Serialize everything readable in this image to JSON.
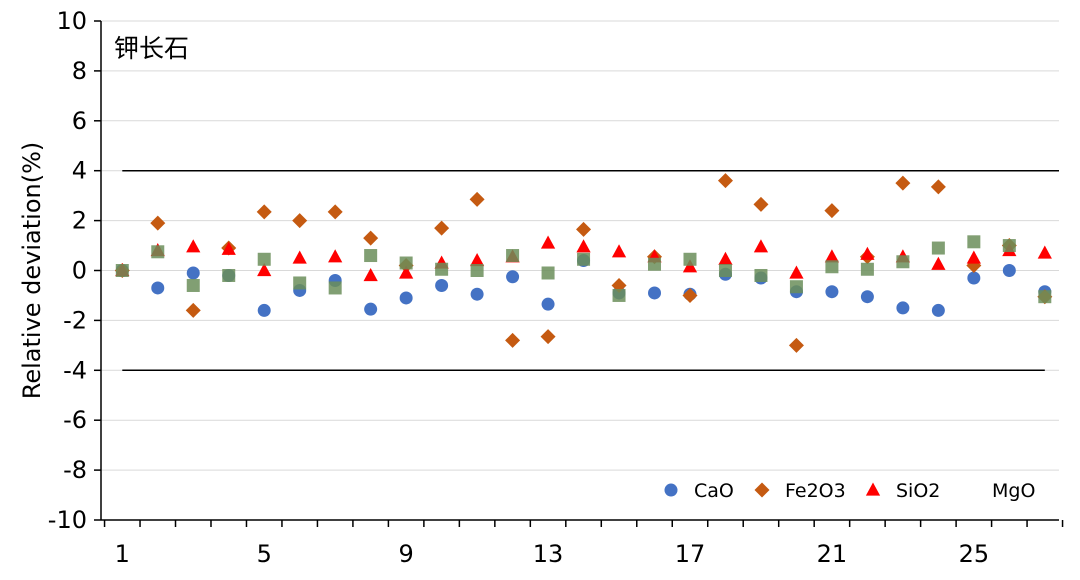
{
  "chart_data": {
    "type": "scatter",
    "title": "钾长石",
    "ylabel": "Relative deviation(%)",
    "xlabel": "",
    "xlim": [
      0.4,
      27.4
    ],
    "ylim": [
      -10,
      10
    ],
    "x_ticks": [
      1,
      5,
      9,
      13,
      17,
      21,
      25
    ],
    "y_ticks": [
      10,
      8,
      6,
      4,
      2,
      0,
      -2,
      -4,
      -6,
      -8,
      -10
    ],
    "y_tick_labels": [
      "10",
      "8",
      "6",
      "4",
      "2",
      "0",
      "-2",
      "-4",
      "-6",
      "-8",
      "-10"
    ],
    "x_tick_labels": [
      "1",
      "5",
      "9",
      "13",
      "17",
      "21",
      "25"
    ],
    "reference_lines": [
      4,
      -4
    ],
    "grid": "horizontal",
    "legend_position": "bottom-right",
    "x": [
      1,
      2,
      3,
      4,
      5,
      6,
      7,
      8,
      9,
      10,
      11,
      12,
      13,
      14,
      15,
      16,
      17,
      18,
      19,
      20,
      21,
      22,
      23,
      24,
      25,
      26,
      27
    ],
    "series": [
      {
        "name": "CaO",
        "marker": "circle",
        "color": "#4472C4",
        "values": [
          0.0,
          -0.7,
          -0.1,
          -0.2,
          -1.6,
          -0.8,
          -0.4,
          -1.55,
          -1.1,
          -0.6,
          -0.95,
          -0.25,
          -1.35,
          0.4,
          -0.9,
          -0.9,
          -0.95,
          -0.15,
          -0.3,
          -0.85,
          -0.85,
          -1.05,
          -1.5,
          -1.6,
          -0.3,
          0.0,
          -0.85
        ]
      },
      {
        "name": "Fe2O3",
        "marker": "diamond",
        "color": "#C55A11",
        "values": [
          0.0,
          1.9,
          -1.6,
          0.9,
          2.35,
          2.0,
          2.35,
          1.3,
          0.2,
          1.7,
          2.85,
          -2.8,
          -2.65,
          1.65,
          -0.6,
          0.55,
          -1.0,
          3.6,
          2.65,
          -3.0,
          2.4,
          0.55,
          3.5,
          3.35,
          0.2,
          1.0,
          -1.05
        ]
      },
      {
        "name": "SiO2",
        "marker": "triangle",
        "color": "#FF0000",
        "values": [
          0.0,
          0.8,
          0.95,
          0.85,
          0.0,
          0.5,
          0.55,
          -0.2,
          -0.1,
          0.3,
          0.4,
          0.55,
          1.1,
          0.95,
          0.75,
          0.55,
          0.15,
          0.45,
          0.95,
          -0.1,
          0.55,
          0.65,
          0.55,
          0.25,
          0.5,
          0.8,
          0.7
        ]
      },
      {
        "name": "MgO",
        "marker": "square",
        "color": "#6B8E5A",
        "opacity": 0.85,
        "values": [
          0.0,
          0.75,
          -0.6,
          -0.2,
          0.45,
          -0.5,
          -0.7,
          0.6,
          0.3,
          0.05,
          0.0,
          0.6,
          -0.1,
          0.45,
          -1.0,
          0.25,
          0.45,
          0.0,
          -0.2,
          -0.65,
          0.15,
          0.05,
          0.35,
          0.9,
          1.15,
          1.0,
          -1.05
        ]
      }
    ]
  }
}
